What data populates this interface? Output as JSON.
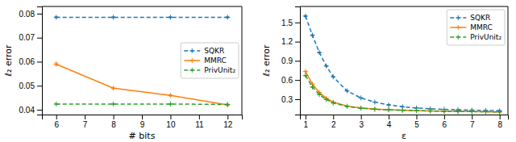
{
  "chart_data": [
    {
      "type": "line",
      "x": [
        6,
        8,
        10,
        12
      ],
      "series": [
        {
          "name": "SQKR",
          "color": "#1f77b4",
          "line_style": "dashed",
          "marker": "plus",
          "values": [
            0.0785,
            0.0785,
            0.0785,
            0.0785
          ],
          "errors": [
            0.0002,
            0.0002,
            0.0002,
            0.0002
          ]
        },
        {
          "name": "MMRC",
          "color": "#ff7f0e",
          "line_style": "solid",
          "marker": "plus",
          "values": [
            0.059,
            0.049,
            0.046,
            0.042
          ],
          "errors": [
            0.0005,
            0.0003,
            0.0003,
            0.0003
          ]
        },
        {
          "name": "PrivUnit₂",
          "color": "#2ca02c",
          "line_style": "dashed",
          "marker": "plus",
          "values": [
            0.0424,
            0.0424,
            0.0424,
            0.0422
          ],
          "errors": [
            0.0001,
            0.0001,
            0.0001,
            0.0001
          ]
        }
      ],
      "xlim": [
        5.5,
        12.5
      ],
      "ylim": [
        0.038,
        0.083
      ],
      "xticks": [
        6,
        7,
        8,
        9,
        10,
        11,
        12
      ],
      "yticks": [
        0.04,
        0.05,
        0.06,
        0.07,
        0.08
      ],
      "xlabel": "# bits",
      "ylabel": "ℓ₂ error",
      "legend": "center right",
      "grid": false
    },
    {
      "type": "line",
      "x": [
        1.0,
        1.25,
        1.5,
        1.75,
        2.0,
        2.5,
        3.0,
        3.5,
        4.0,
        4.5,
        5.0,
        5.5,
        6.0,
        6.5,
        7.0,
        7.5,
        8.0
      ],
      "series": [
        {
          "name": "SQKR",
          "color": "#1f77b4",
          "line_style": "dashed",
          "marker": "plus",
          "values": [
            1.6,
            1.3,
            1.03,
            0.82,
            0.65,
            0.43,
            0.32,
            0.255,
            0.21,
            0.182,
            0.163,
            0.15,
            0.142,
            0.135,
            0.129,
            0.124,
            0.12
          ],
          "errors": [
            0.008,
            0.007,
            0.006,
            0.005,
            0.004,
            0.003,
            0.003,
            0.002,
            0.002,
            0.002,
            0.002,
            0.001,
            0.001,
            0.001,
            0.001,
            0.001,
            0.001
          ]
        },
        {
          "name": "MMRC",
          "color": "#ff7f0e",
          "line_style": "solid",
          "marker": "plus",
          "values": [
            0.735,
            0.535,
            0.405,
            0.315,
            0.255,
            0.193,
            0.163,
            0.146,
            0.136,
            0.128,
            0.122,
            0.117,
            0.113,
            0.11,
            0.107,
            0.105,
            0.102
          ],
          "errors": [
            0.004,
            0.003,
            0.003,
            0.002,
            0.002,
            0.002,
            0.001,
            0.001,
            0.001,
            0.001,
            0.001,
            0.001,
            0.001,
            0.001,
            0.001,
            0.001,
            0.001
          ]
        },
        {
          "name": "PrivUnit₂",
          "color": "#2ca02c",
          "line_style": "dashed",
          "marker": "plus",
          "values": [
            0.67,
            0.49,
            0.372,
            0.295,
            0.242,
            0.187,
            0.16,
            0.144,
            0.134,
            0.127,
            0.121,
            0.116,
            0.112,
            0.109,
            0.106,
            0.104,
            0.101
          ],
          "errors": [
            0.004,
            0.003,
            0.003,
            0.002,
            0.002,
            0.002,
            0.001,
            0.001,
            0.001,
            0.001,
            0.001,
            0.001,
            0.001,
            0.001,
            0.001,
            0.001,
            0.001
          ]
        }
      ],
      "xlim": [
        0.8,
        8.3
      ],
      "ylim": [
        0.06,
        1.75
      ],
      "xticks": [
        1,
        2,
        3,
        4,
        5,
        6,
        7,
        8
      ],
      "yticks": [
        0.3,
        0.6,
        0.9,
        1.2,
        1.5
      ],
      "xlabel": "ε",
      "ylabel": "ℓ₂ error",
      "legend": "upper right",
      "grid": false
    }
  ]
}
